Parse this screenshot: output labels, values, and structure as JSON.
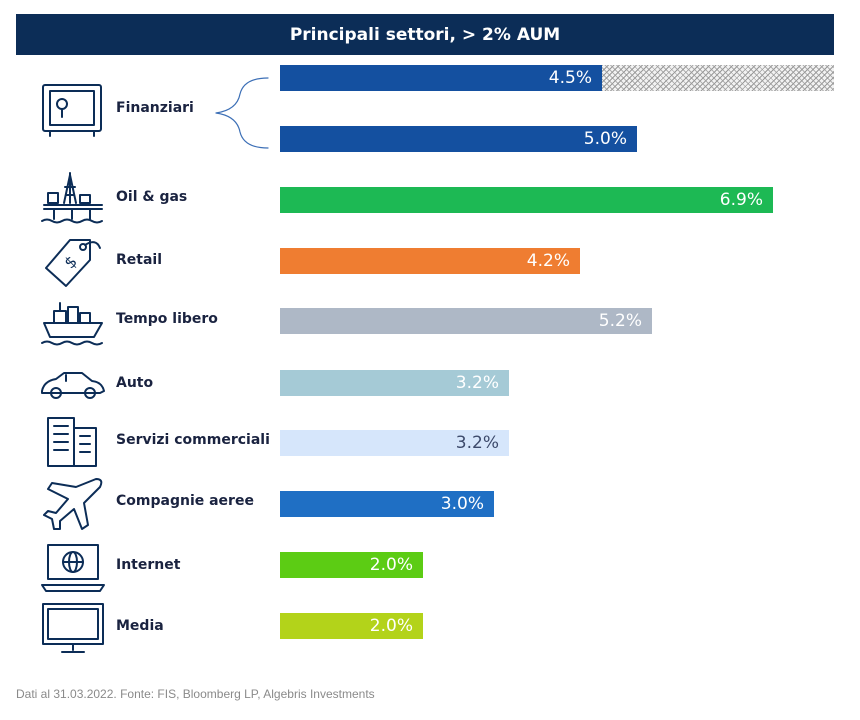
{
  "header": {
    "title": "Principali settori, > 2% AUM"
  },
  "chart_data": {
    "type": "bar",
    "orientation": "horizontal",
    "title": "Principali settori, > 2% AUM",
    "xlim": [
      0,
      6.9
    ],
    "bars": [
      {
        "category": "Finanziari",
        "value": 4.5,
        "label": "4.5%",
        "color": "#1450a0",
        "hatched_remainder": true
      },
      {
        "category": "Finanziari",
        "value": 5.0,
        "label": "5.0%",
        "color": "#1450a0"
      },
      {
        "category": "Oil & gas",
        "value": 6.9,
        "label": "6.9%",
        "color": "#1db954"
      },
      {
        "category": "Retail",
        "value": 4.2,
        "label": "4.2%",
        "color": "#ef7d31"
      },
      {
        "category": "Tempo libero",
        "value": 5.2,
        "label": "5.2%",
        "color": "#aeb8c6"
      },
      {
        "category": "Auto",
        "value": 3.2,
        "label": "3.2%",
        "color": "#a5cad6"
      },
      {
        "category": "Servizi commerciali",
        "value": 3.2,
        "label": "3.2%",
        "color": "#d6e6fb"
      },
      {
        "category": "Compagnie aeree",
        "value": 3.0,
        "label": "3.0%",
        "color": "#1f6fc4"
      },
      {
        "category": "Internet",
        "value": 2.0,
        "label": "2.0%",
        "color": "#5ccc14"
      },
      {
        "category": "Media",
        "value": 2.0,
        "label": "2.0%",
        "color": "#b3d31a"
      }
    ]
  },
  "sectors": [
    {
      "name": "Finanziari",
      "icon": "safe-icon"
    },
    {
      "name": "Oil & gas",
      "icon": "oil-rig-icon"
    },
    {
      "name": "Retail",
      "icon": "price-tag-icon"
    },
    {
      "name": "Tempo libero",
      "icon": "cruise-ship-icon"
    },
    {
      "name": "Auto",
      "icon": "car-icon"
    },
    {
      "name": "Servizi commerciali",
      "icon": "office-building-icon"
    },
    {
      "name": "Compagnie aeree",
      "icon": "airplane-icon"
    },
    {
      "name": "Internet",
      "icon": "laptop-globe-icon"
    },
    {
      "name": "Media",
      "icon": "tv-monitor-icon"
    }
  ],
  "footer": {
    "source": "Dati al 31.03.2022. Fonte: FIS, Bloomberg LP, Algebris Investments"
  }
}
